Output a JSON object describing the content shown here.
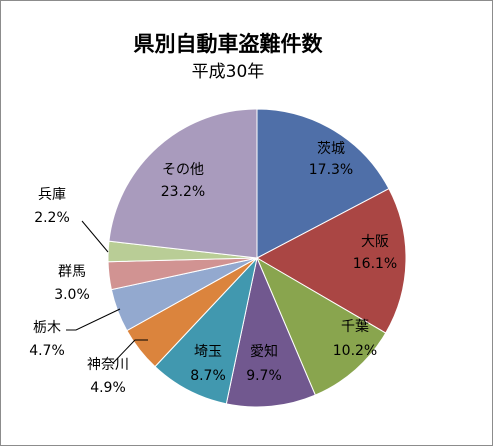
{
  "chart_data": {
    "type": "pie",
    "title": "県別自動車盗難件数",
    "subtitle": "平成30年",
    "slices": [
      {
        "name": "茨城",
        "value": 17.3,
        "label": "17.3%",
        "color": "#4F6FA8"
      },
      {
        "name": "大阪",
        "value": 16.1,
        "label": "16.1%",
        "color": "#AA4644"
      },
      {
        "name": "千葉",
        "value": 10.2,
        "label": "10.2%",
        "color": "#89A54E"
      },
      {
        "name": "愛知",
        "value": 9.7,
        "label": "9.7%",
        "color": "#71588F"
      },
      {
        "name": "埼玉",
        "value": 8.7,
        "label": "8.7%",
        "color": "#4198AF"
      },
      {
        "name": "神奈川",
        "value": 4.9,
        "label": "4.9%",
        "color": "#DB843D"
      },
      {
        "name": "栃木",
        "value": 4.7,
        "label": "4.7%",
        "color": "#93A9CF"
      },
      {
        "name": "群馬",
        "value": 3.0,
        "label": "3.0%",
        "color": "#D19392"
      },
      {
        "name": "兵庫",
        "value": 2.2,
        "label": "2.2%",
        "color": "#B9CD96"
      },
      {
        "name": "その他",
        "value": 23.2,
        "label": "23.2%",
        "color": "#A99BBD"
      }
    ]
  }
}
